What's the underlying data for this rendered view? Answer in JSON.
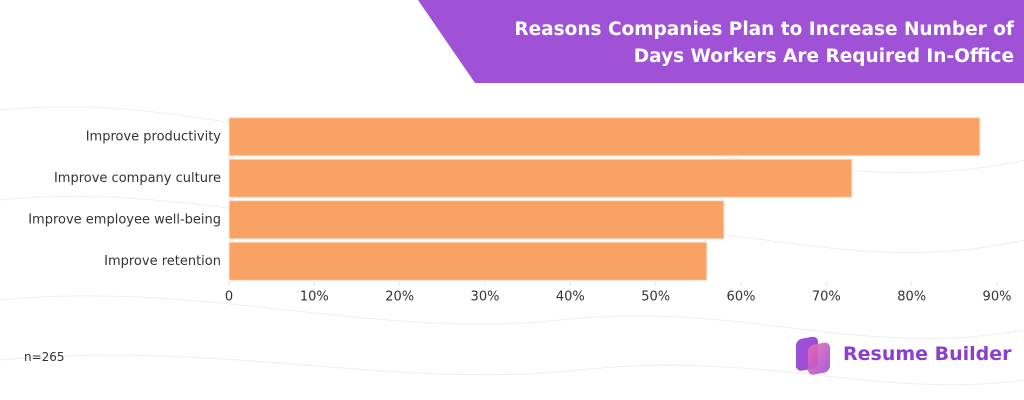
{
  "chart_data": {
    "type": "hbar",
    "title": "Reasons Companies Plan to Increase Number of Days Workers Are Required In-Office",
    "note": "n=265",
    "categories": [
      "Improve productivity",
      "Improve company culture",
      "Improve employee well-being",
      "Improve retention"
    ],
    "values": [
      88,
      73,
      58,
      56
    ],
    "color": "#f9a266",
    "xlim": [
      0,
      90
    ],
    "xticks": [
      0,
      {
        "value": 10,
        "label": "10%"
      },
      {
        "value": 20,
        "label": "20%"
      },
      {
        "value": 30,
        "label": "30%"
      },
      {
        "value": 40,
        "label": "40%"
      },
      {
        "value": 50,
        "label": "50%"
      },
      {
        "value": 60,
        "label": "60%"
      },
      {
        "value": 70,
        "label": "70%"
      },
      {
        "value": 80,
        "label": "80%"
      },
      {
        "value": 90,
        "label": "90%"
      }
    ],
    "grid": false
  },
  "brand": "Resume Builder"
}
